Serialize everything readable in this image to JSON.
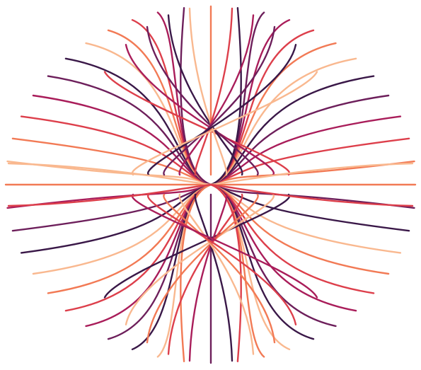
{
  "artwork": {
    "background": "#ffffff",
    "palette": [
      "#f9b88f",
      "#f27a55",
      "#dd3f4b",
      "#a91d5a",
      "#6d1f5b",
      "#3a1848"
    ],
    "left_fan_curves": 11,
    "right_fan_curves": 11,
    "horizontal_lines": 1
  }
}
